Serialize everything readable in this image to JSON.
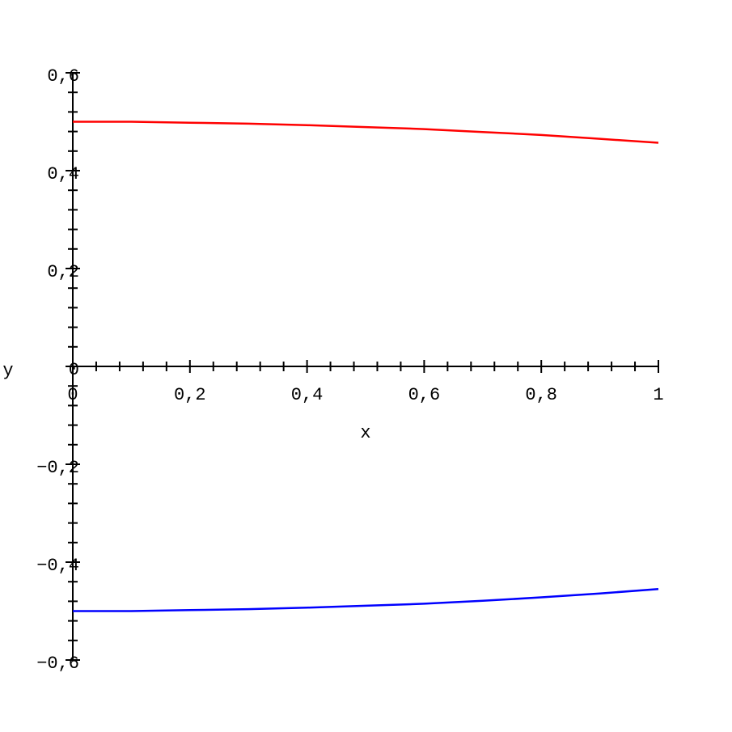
{
  "chart_data": {
    "type": "line",
    "x_label": "x",
    "y_label": "y",
    "x": [
      0,
      0.1,
      0.2,
      0.3,
      0.4,
      0.5,
      0.6,
      0.7,
      0.8,
      0.9,
      1
    ],
    "series": [
      {
        "color": "#ff0000",
        "values": [
          0.5,
          0.5,
          0.498,
          0.496,
          0.493,
          0.489,
          0.485,
          0.479,
          0.473,
          0.465,
          0.457
        ]
      },
      {
        "color": "#0000ff",
        "values": [
          -0.5,
          -0.5,
          -0.498,
          -0.496,
          -0.493,
          -0.489,
          -0.485,
          -0.479,
          -0.472,
          -0.464,
          -0.455
        ]
      }
    ],
    "xlim": [
      0,
      1
    ],
    "ylim": [
      -0.6,
      0.6
    ],
    "xticks": [
      0,
      {
        "value": 0.2,
        "label": "0,2"
      },
      {
        "value": 0.4,
        "label": "0,4"
      },
      {
        "value": 0.6,
        "label": "0,6"
      },
      {
        "value": 0.8,
        "label": "0,8"
      },
      1
    ],
    "yticks": [
      {
        "value": -0.6,
        "label": "−0,6"
      },
      {
        "value": -0.4,
        "label": "−0,4"
      },
      {
        "value": -0.2,
        "label": "−0,2"
      },
      0,
      {
        "value": 0.2,
        "label": "0,2"
      },
      {
        "value": 0.4,
        "label": "0,4"
      },
      {
        "value": 0.6,
        "label": "0,6"
      }
    ],
    "xminorticks": [
      0.04,
      0.08,
      0.12,
      0.16,
      0.24,
      0.28,
      0.32,
      0.36,
      0.44,
      0.48,
      0.52,
      0.56,
      0.64,
      0.68,
      0.72,
      0.76,
      0.84,
      0.88,
      0.92,
      0.96
    ],
    "yminorticks": [
      -0.56,
      -0.52,
      -0.48,
      -0.44,
      -0.36,
      -0.32,
      -0.28,
      -0.24,
      -0.16,
      -0.12,
      -0.08,
      -0.04,
      0.04,
      0.08,
      0.12,
      0.16,
      0.24,
      0.28,
      0.32,
      0.36,
      0.44,
      0.48,
      0.52,
      0.56
    ]
  }
}
